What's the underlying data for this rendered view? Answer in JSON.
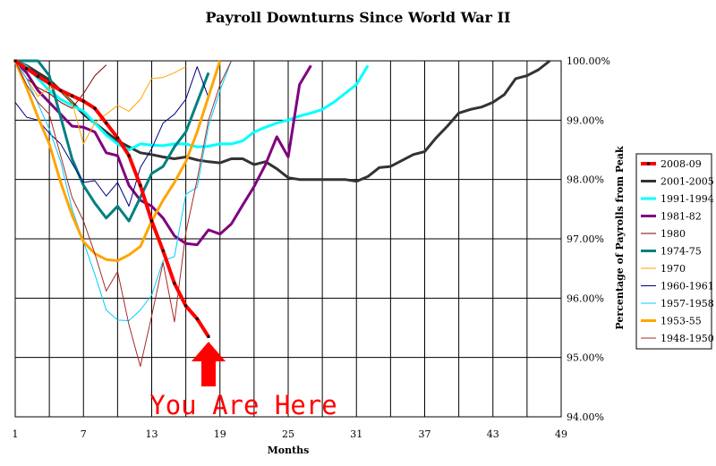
{
  "chart_data": {
    "type": "line",
    "title": "Payroll Downturns Since World War II",
    "xlabel": "Months",
    "ylabel": "Percentage of Payrolls from Peak",
    "xlim": [
      1,
      49
    ],
    "ylim": [
      94.0,
      100.0
    ],
    "x_ticks": [
      1,
      7,
      13,
      19,
      25,
      31,
      37,
      43,
      49
    ],
    "y_ticks": [
      "94.00%",
      "95.00%",
      "96.00%",
      "97.00%",
      "98.00%",
      "99.00%",
      "100.00%"
    ],
    "y_tick_values": [
      94,
      95,
      96,
      97,
      98,
      99,
      100
    ],
    "grid": true,
    "legend_position": "right",
    "annotation": {
      "text": "You Are Here",
      "x": 18,
      "color": "#ff0000"
    },
    "series": [
      {
        "name": "2008-09",
        "color": "#ff0000",
        "width": 4,
        "markers": true,
        "values": [
          100,
          99.87,
          99.74,
          99.62,
          99.5,
          99.41,
          99.32,
          99.2,
          98.95,
          98.7,
          98.4,
          97.9,
          97.3,
          96.8,
          96.25,
          95.87,
          95.65,
          95.35
        ]
      },
      {
        "name": "2001-2005",
        "color": "#333333",
        "width": 3,
        "values": [
          100,
          99.92,
          99.8,
          99.68,
          99.5,
          99.3,
          99.1,
          98.95,
          98.8,
          98.65,
          98.55,
          98.45,
          98.42,
          98.38,
          98.35,
          98.38,
          98.33,
          98.3,
          98.28,
          98.35,
          98.35,
          98.25,
          98.3,
          98.18,
          98.03,
          98,
          98,
          98,
          98,
          98,
          97.97,
          98.05,
          98.2,
          98.22,
          98.32,
          98.42,
          98.47,
          98.7,
          98.9,
          99.12,
          99.18,
          99.22,
          99.3,
          99.43,
          99.7,
          99.75,
          99.85,
          100
        ]
      },
      {
        "name": "1991-1994",
        "color": "#00ffff",
        "width": 3,
        "values": [
          100,
          99.9,
          99.7,
          99.5,
          99.35,
          99.25,
          99.15,
          98.95,
          98.75,
          98.6,
          98.5,
          98.6,
          98.58,
          98.57,
          98.6,
          98.6,
          98.55,
          98.56,
          98.6,
          98.6,
          98.65,
          98.8,
          98.88,
          98.95,
          99.0,
          99.07,
          99.12,
          99.18,
          99.3,
          99.45,
          99.6,
          99.92
        ]
      },
      {
        "name": "1981-82",
        "color": "#800080",
        "width": 3,
        "values": [
          100,
          99.8,
          99.5,
          99.3,
          99.1,
          98.9,
          98.88,
          98.8,
          98.45,
          98.4,
          97.9,
          97.65,
          97.55,
          97.35,
          97.05,
          96.92,
          96.9,
          97.15,
          97.08,
          97.25,
          97.57,
          97.88,
          98.25,
          98.72,
          98.38,
          99.6,
          99.92
        ]
      },
      {
        "name": "1980",
        "color": "#800000",
        "width": 1,
        "values": [
          100,
          99.7,
          99.55,
          99.45,
          99.3,
          99.2,
          99.45,
          99.75,
          99.93
        ]
      },
      {
        "name": "1974-75",
        "color": "#008080",
        "width": 3,
        "values": [
          100,
          100,
          100,
          99.75,
          99.05,
          98.35,
          97.9,
          97.6,
          97.35,
          97.55,
          97.3,
          97.7,
          98.1,
          98.22,
          98.55,
          98.8,
          99.3,
          99.8
        ]
      },
      {
        "name": "1970",
        "color": "#ffa500",
        "width": 1,
        "values": [
          100,
          99.7,
          99.4,
          99.55,
          99.5,
          99.3,
          98.6,
          98.95,
          99.1,
          99.25,
          99.15,
          99.35,
          99.7,
          99.72,
          99.8,
          99.9
        ]
      },
      {
        "name": "1960-1961",
        "color": "#000080",
        "width": 1,
        "values": [
          99.3,
          99.05,
          99,
          98.78,
          98.6,
          98.27,
          97.95,
          97.98,
          97.72,
          97.95,
          97.55,
          98.2,
          98.52,
          98.95,
          99.1,
          99.35,
          99.9,
          99.38
        ]
      },
      {
        "name": "1957-1958",
        "color": "#00ccff",
        "width": 1,
        "values": [
          100,
          99.7,
          99.28,
          98.85,
          98.3,
          97.5,
          96.95,
          96.4,
          95.8,
          95.63,
          95.62,
          95.8,
          96.05,
          96.63,
          96.7,
          97.75,
          97.87,
          98.9,
          99.5,
          100
        ]
      },
      {
        "name": "1953-55",
        "color": "#ffa500",
        "width": 3,
        "values": [
          100,
          99.55,
          99.05,
          98.6,
          97.95,
          97.4,
          96.95,
          96.75,
          96.65,
          96.63,
          96.73,
          96.87,
          97.3,
          97.65,
          97.95,
          98.3,
          98.8,
          99.4,
          100
        ]
      },
      {
        "name": "1948-1950",
        "color": "#a52a2a",
        "width": 1,
        "values": [
          100,
          99.6,
          99.3,
          99.1,
          98.4,
          97.7,
          97.3,
          96.75,
          96.12,
          96.45,
          95.55,
          94.85,
          95.7,
          96.6,
          95.6,
          97.1,
          98.0,
          99.0,
          99.6,
          100
        ]
      }
    ]
  }
}
